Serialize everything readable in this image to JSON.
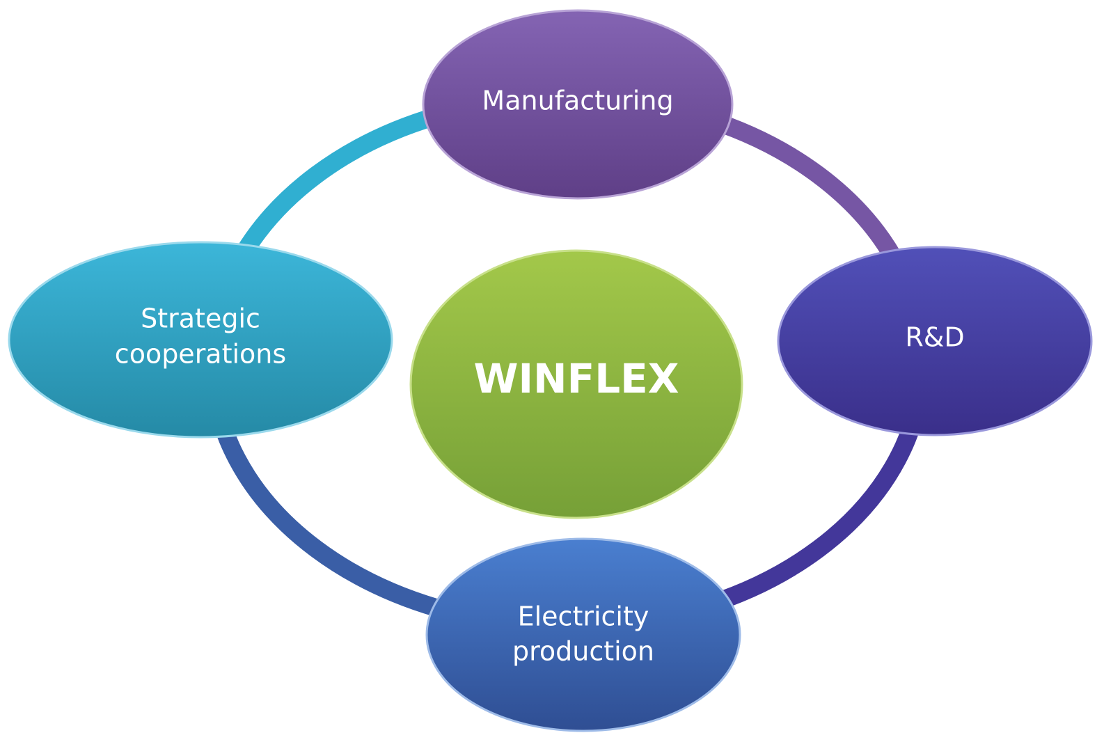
{
  "center": {
    "label": "WINFLEX"
  },
  "nodes": [
    {
      "lines": [
        "Manufacturing"
      ]
    },
    {
      "lines": [
        "R&D"
      ]
    },
    {
      "lines": [
        "Electricity",
        "production"
      ]
    },
    {
      "lines": [
        "Strategic",
        "cooperations"
      ]
    }
  ]
}
